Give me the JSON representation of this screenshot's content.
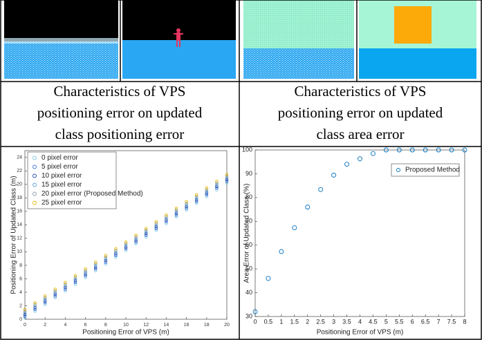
{
  "captions": [
    [
      "Characteristics of VPS",
      "positioning error on updated",
      "class positioning error"
    ],
    [
      "Characteristics of VPS",
      "positioning error on updated",
      "class area error"
    ]
  ],
  "chart_data": [
    {
      "type": "scatter",
      "xlabel": "Positioning Error of VPS (m)",
      "ylabel": "Positioning Error of Updated Class (m)",
      "x": [
        0,
        1,
        2,
        3,
        4,
        5,
        6,
        7,
        8,
        9,
        10,
        11,
        12,
        13,
        14,
        15,
        16,
        17,
        18,
        19,
        20
      ],
      "xlim": [
        0,
        20
      ],
      "xticks": [
        0,
        2,
        4,
        6,
        8,
        10,
        12,
        14,
        16,
        18,
        20
      ],
      "ylim": [
        0,
        25
      ],
      "yticks": [
        0,
        2,
        4,
        6,
        8,
        10,
        12,
        14,
        16,
        18,
        20,
        22,
        24
      ],
      "legend": "upper left",
      "series": [
        {
          "name": "0 pixel error",
          "color": "#7ec8e3",
          "values": [
            0.2,
            1.2,
            2.2,
            3.2,
            4.2,
            5.2,
            6.2,
            7.2,
            8.2,
            9.2,
            10.2,
            11.2,
            12.2,
            13.2,
            14.2,
            15.2,
            16.2,
            17.2,
            18.2,
            19.2,
            20.2
          ]
        },
        {
          "name": "5 pixel error",
          "color": "#3a6fd8",
          "values": [
            0.45,
            1.45,
            2.45,
            3.45,
            4.45,
            5.45,
            6.45,
            7.45,
            8.45,
            9.45,
            10.45,
            11.45,
            12.45,
            13.45,
            14.45,
            15.45,
            16.45,
            17.45,
            18.45,
            19.45,
            20.45
          ]
        },
        {
          "name": "10 pixel error",
          "color": "#1f3fa0",
          "values": [
            0.7,
            1.7,
            2.7,
            3.7,
            4.7,
            5.7,
            6.7,
            7.7,
            8.7,
            9.7,
            10.7,
            11.7,
            12.7,
            13.7,
            14.7,
            15.7,
            16.7,
            17.7,
            18.7,
            19.7,
            20.7
          ]
        },
        {
          "name": "15 pixel error",
          "color": "#5aa0d0",
          "values": [
            0.95,
            1.95,
            2.95,
            3.95,
            4.95,
            5.95,
            6.95,
            7.95,
            8.95,
            9.95,
            10.95,
            11.95,
            12.95,
            13.95,
            14.95,
            15.95,
            16.95,
            17.95,
            18.95,
            19.95,
            20.95
          ]
        },
        {
          "name": "20 pixel error (Proposed Method)",
          "color": "#8899aa",
          "values": [
            1.2,
            2.2,
            3.2,
            4.2,
            5.2,
            6.2,
            7.2,
            8.2,
            9.2,
            10.2,
            11.2,
            12.2,
            13.2,
            14.2,
            15.2,
            16.2,
            17.2,
            18.2,
            19.2,
            20.2,
            21.2
          ]
        },
        {
          "name": "25 pixel error",
          "color": "#e6b800",
          "values": [
            1.45,
            2.45,
            3.45,
            4.45,
            5.45,
            6.45,
            7.45,
            8.45,
            9.45,
            10.45,
            11.45,
            12.45,
            13.45,
            14.45,
            15.45,
            16.45,
            17.45,
            18.45,
            19.45,
            20.45,
            21.45
          ]
        }
      ]
    },
    {
      "type": "scatter",
      "xlabel": "Positioning Error of VPS (m)",
      "ylabel": "Area Error of Updated Class (%)",
      "x": [
        0,
        0.5,
        1,
        1.5,
        2,
        2.5,
        3,
        3.5,
        4,
        4.5,
        5,
        5.5,
        6,
        6.5,
        7,
        7.5,
        8
      ],
      "xlim": [
        0,
        8
      ],
      "xticks": [
        0,
        0.5,
        1,
        1.5,
        2,
        2.5,
        3,
        3.5,
        4,
        4.5,
        5,
        5.5,
        6,
        6.5,
        7,
        7.5,
        8
      ],
      "ylim": [
        30,
        100
      ],
      "yticks": [
        30,
        40,
        50,
        60,
        70,
        80,
        90,
        100
      ],
      "legend": "upper right",
      "series": [
        {
          "name": "Proposed Method",
          "color": "#0072bd",
          "values": [
            32,
            46,
            57.3,
            67.3,
            76,
            83.4,
            89.4,
            94,
            96.3,
            98.5,
            100,
            100,
            100,
            100,
            100,
            100,
            100
          ]
        }
      ]
    }
  ]
}
